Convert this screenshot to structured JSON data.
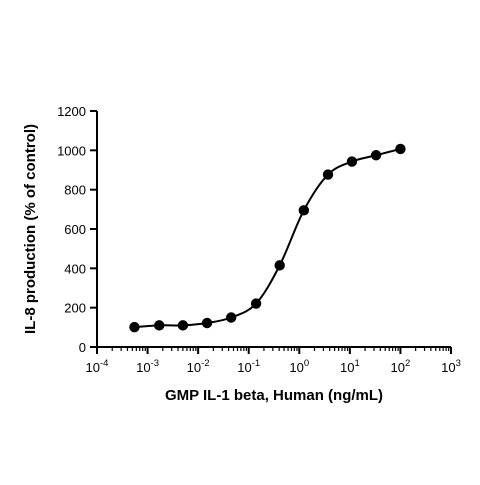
{
  "chart_data": {
    "type": "scatter",
    "xlabel": "GMP IL-1 beta, Human (ng/mL)",
    "ylabel": "IL-8 production (% of control)",
    "x_scale": "log",
    "xlim": [
      0.0001,
      1000
    ],
    "ylim": [
      0,
      1200
    ],
    "x_ticks": [
      {
        "value": 0.0001,
        "base": "10",
        "exp": "-4"
      },
      {
        "value": 0.001,
        "base": "10",
        "exp": "-3"
      },
      {
        "value": 0.01,
        "base": "10",
        "exp": "-2"
      },
      {
        "value": 0.1,
        "base": "10",
        "exp": "-1"
      },
      {
        "value": 1,
        "base": "10",
        "exp": "0"
      },
      {
        "value": 10,
        "base": "10",
        "exp": "1"
      },
      {
        "value": 100,
        "base": "10",
        "exp": "2"
      },
      {
        "value": 1000,
        "base": "10",
        "exp": "3"
      }
    ],
    "y_ticks": [
      0,
      200,
      400,
      600,
      800,
      1000,
      1200
    ],
    "grid": false,
    "legend": "none",
    "series": [
      {
        "x": [
          0.00055,
          0.0017,
          0.005,
          0.015,
          0.045,
          0.14,
          0.41,
          1.23,
          3.7,
          11,
          33,
          100
        ],
        "y": [
          101,
          110,
          110,
          122,
          150,
          221,
          415,
          695,
          877,
          943,
          975,
          1007
        ],
        "color": "#000000",
        "marker": "circle",
        "fit_curve": true
      }
    ]
  }
}
